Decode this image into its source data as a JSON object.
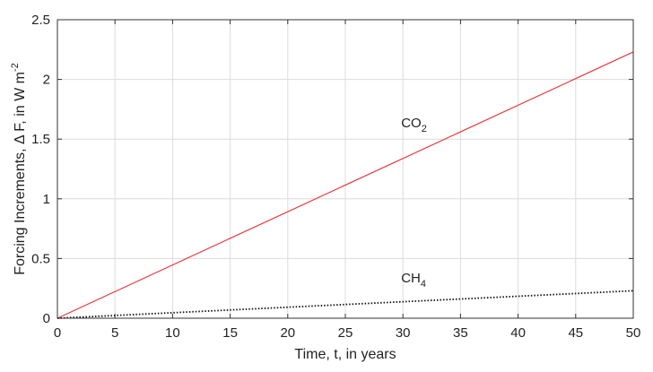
{
  "chart_data": {
    "type": "line",
    "title": "",
    "xlabel": "Time, t,  in years",
    "ylabel": {
      "main": "Forcing Increments,  Δ F,   in W m",
      "superscript": "-2"
    },
    "xlim": [
      0,
      50
    ],
    "ylim": [
      0,
      2.5
    ],
    "x_ticks": [
      "0",
      "5",
      "10",
      "15",
      "20",
      "25",
      "30",
      "35",
      "40",
      "45",
      "50"
    ],
    "y_ticks": [
      "0",
      "0.5",
      "1",
      "1.5",
      "2",
      "2.5"
    ],
    "grid": true,
    "series": [
      {
        "name": "CO2",
        "label": {
          "base": "CO",
          "sub": "2",
          "at": [
            30,
            1.6
          ]
        },
        "x": [
          0,
          50
        ],
        "y": [
          0,
          2.23
        ],
        "color": "#e8383d",
        "style": "solid"
      },
      {
        "name": "CH4",
        "label": {
          "base": "CH",
          "sub": "4",
          "at": [
            30,
            0.3
          ]
        },
        "x": [
          0,
          50
        ],
        "y": [
          0,
          0.23
        ],
        "color": "#111111",
        "style": "dotted"
      }
    ]
  }
}
